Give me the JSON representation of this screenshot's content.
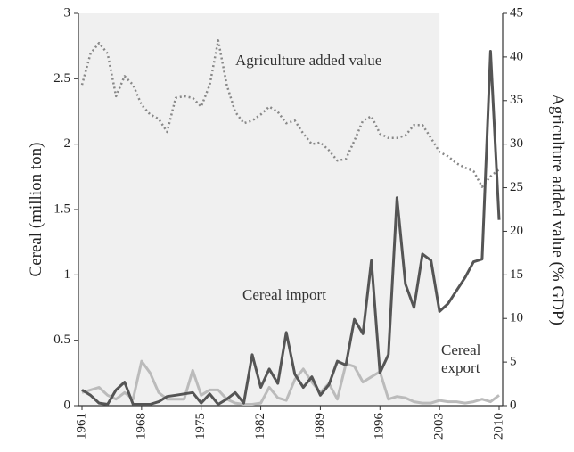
{
  "chart_data": {
    "type": "line",
    "x": [
      1961,
      1962,
      1963,
      1964,
      1965,
      1966,
      1967,
      1968,
      1969,
      1970,
      1971,
      1972,
      1973,
      1974,
      1975,
      1976,
      1977,
      1978,
      1979,
      1980,
      1981,
      1982,
      1983,
      1984,
      1985,
      1986,
      1987,
      1988,
      1989,
      1990,
      1991,
      1992,
      1993,
      1994,
      1995,
      1996,
      1997,
      1998,
      1999,
      2000,
      2001,
      2002,
      2003,
      2004,
      2005,
      2006,
      2007,
      2008,
      2009,
      2010
    ],
    "series": [
      {
        "name": "Cereal import",
        "color": "#555555",
        "dash": "solid",
        "values": [
          0.12,
          0.08,
          0.02,
          0.01,
          0.12,
          0.18,
          0.01,
          0.01,
          0.01,
          0.03,
          0.07,
          0.08,
          0.09,
          0.1,
          0.02,
          0.09,
          0.01,
          0.05,
          0.1,
          0.02,
          0.39,
          0.14,
          0.28,
          0.17,
          0.56,
          0.24,
          0.14,
          0.22,
          0.08,
          0.16,
          0.34,
          0.31,
          0.66,
          0.55,
          1.11,
          0.25,
          0.39,
          1.59,
          0.93,
          0.75,
          1.16,
          1.11,
          0.72,
          0.78,
          0.88,
          0.98,
          1.1,
          1.12,
          2.71,
          1.42
        ]
      },
      {
        "name": "Cereal export",
        "color": "#bbbbbb",
        "dash": "solid",
        "values": [
          0.1,
          0.12,
          0.14,
          0.08,
          0.05,
          0.1,
          0.05,
          0.34,
          0.25,
          0.1,
          0.05,
          0.05,
          0.05,
          0.27,
          0.08,
          0.12,
          0.12,
          0.05,
          0.02,
          0.01,
          0.01,
          0.02,
          0.14,
          0.06,
          0.04,
          0.2,
          0.28,
          0.18,
          0.1,
          0.17,
          0.05,
          0.32,
          0.3,
          0.18,
          0.22,
          0.26,
          0.05,
          0.07,
          0.06,
          0.03,
          0.02,
          0.02,
          0.04,
          0.03,
          0.03,
          0.02,
          0.03,
          0.05,
          0.03,
          0.08
        ]
      },
      {
        "name": "Agriculture added value",
        "color": "#888888",
        "dash": "dotted",
        "axis": "y2",
        "values": [
          36.8,
          40.4,
          41.6,
          40.4,
          35.5,
          37.8,
          36.8,
          34.5,
          33.4,
          32.9,
          31.4,
          35.3,
          35.5,
          35.3,
          34.3,
          36.8,
          41.9,
          36.8,
          33.7,
          32.4,
          32.7,
          33.4,
          34.3,
          33.7,
          32.4,
          32.7,
          31.2,
          30.0,
          30.2,
          29.3,
          28.1,
          28.3,
          30.4,
          32.7,
          33.2,
          31.2,
          30.7,
          30.7,
          31.0,
          32.2,
          32.2,
          30.7,
          29.1,
          28.6,
          27.8,
          27.3,
          26.9,
          25.1,
          26.3,
          27.1
        ]
      }
    ],
    "annotations": [
      "Agriculture added value",
      "Cereal import",
      "Cereal export"
    ],
    "ylabel": "Cereal (million ton)",
    "y2label": "Agriculture added value (% GDP)",
    "xlim": [
      1961,
      2010
    ],
    "xticks": [
      1961,
      1968,
      1975,
      1982,
      1989,
      1996,
      2003,
      2010
    ],
    "ylim": [
      0,
      3
    ],
    "yticks": [
      0,
      0.5,
      1,
      1.5,
      2,
      2.5,
      3
    ],
    "y2lim": [
      0,
      45
    ],
    "y2ticks": [
      0,
      5,
      10,
      15,
      20,
      25,
      30,
      35,
      40,
      45
    ],
    "shade_x": [
      1961,
      2003
    ],
    "shade_color": "#f0f0f0",
    "grid": false
  }
}
